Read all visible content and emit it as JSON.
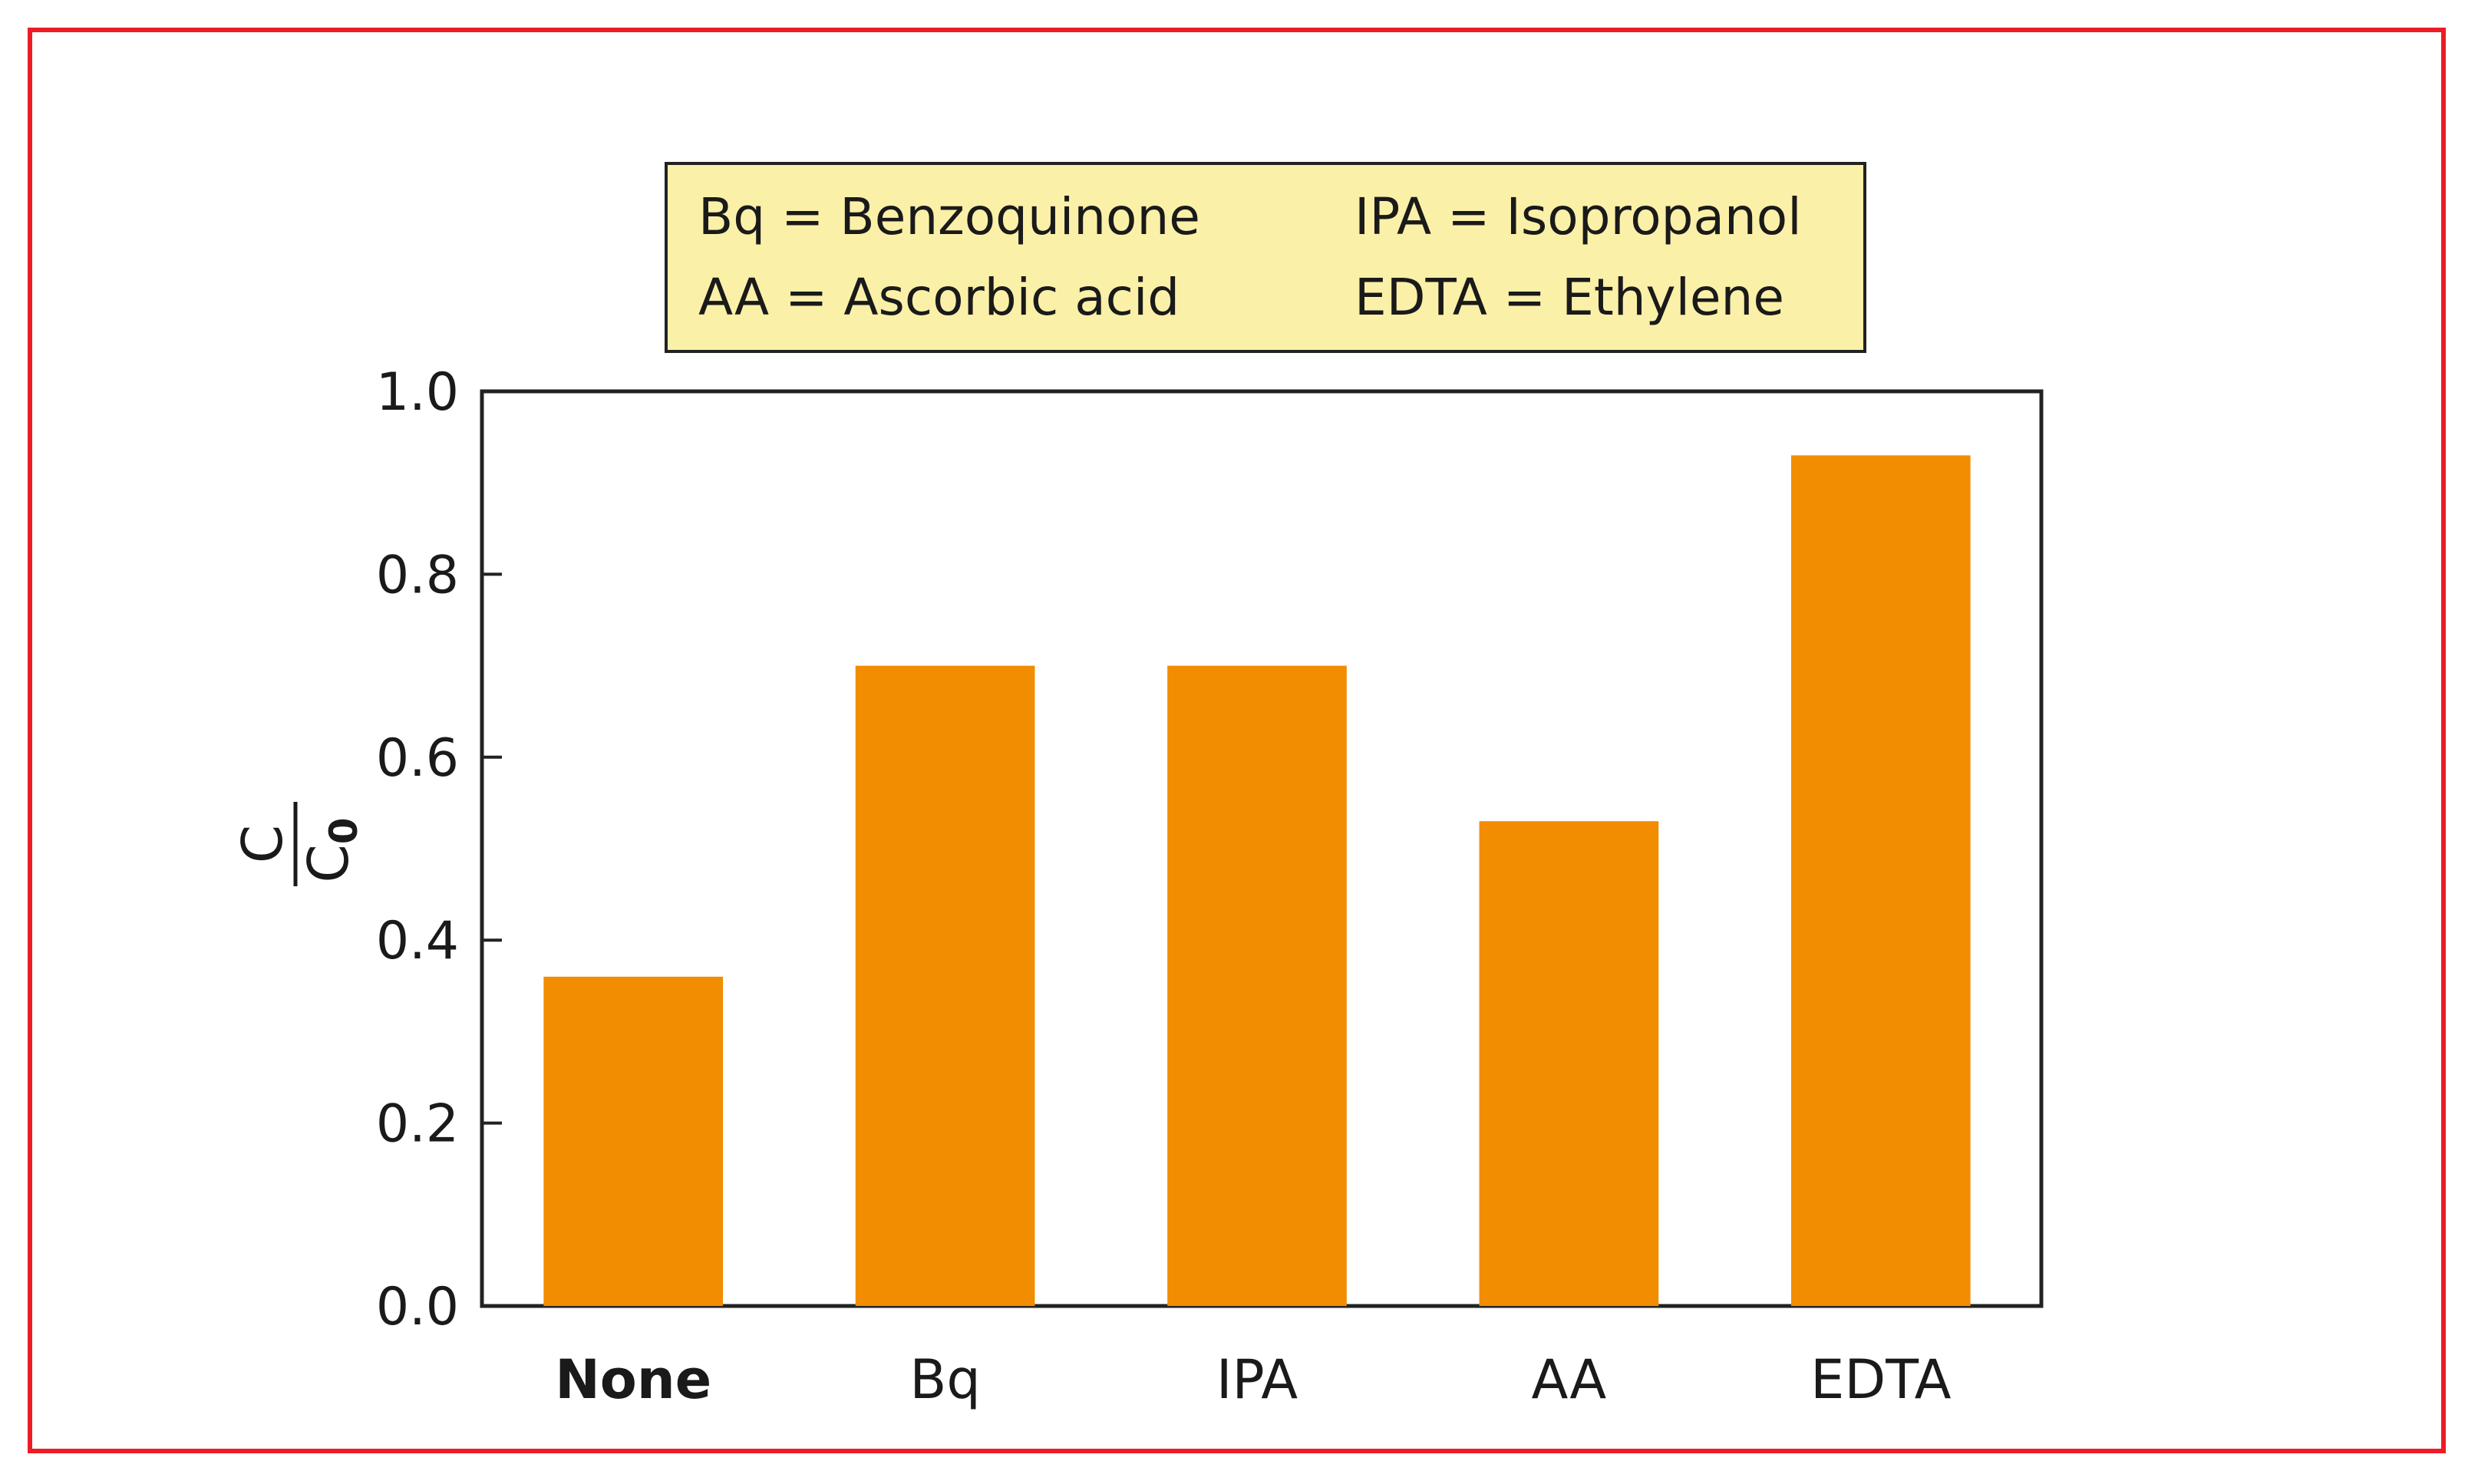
{
  "chart_data": {
    "type": "bar",
    "title": "",
    "xlabel": "",
    "ylabel": "C/C0",
    "ylabel_parts": {
      "numerator": "C",
      "denominator": "C",
      "subscript": "0"
    },
    "categories": [
      "None",
      "Bq",
      "IPA",
      "AA",
      "EDTA"
    ],
    "category_bold": [
      true,
      false,
      false,
      false,
      false
    ],
    "values": [
      0.36,
      0.7,
      0.7,
      0.53,
      0.93
    ],
    "ylim": [
      0.0,
      1.0
    ],
    "yticks": [
      "0.0",
      "0.2",
      "0.4",
      "0.6",
      "0.8",
      "1.0"
    ],
    "ytick_values": [
      0.0,
      0.2,
      0.4,
      0.6,
      0.8,
      1.0
    ],
    "grid": false,
    "bar_color": "#f28c00",
    "legend": {
      "placement": "top-center",
      "background": "#fbf0a8",
      "entries": [
        "Bq = Benzoquinone",
        "IPA = Isopropanol",
        "AA = Ascorbic acid",
        "EDTA = Ethylene"
      ]
    }
  }
}
